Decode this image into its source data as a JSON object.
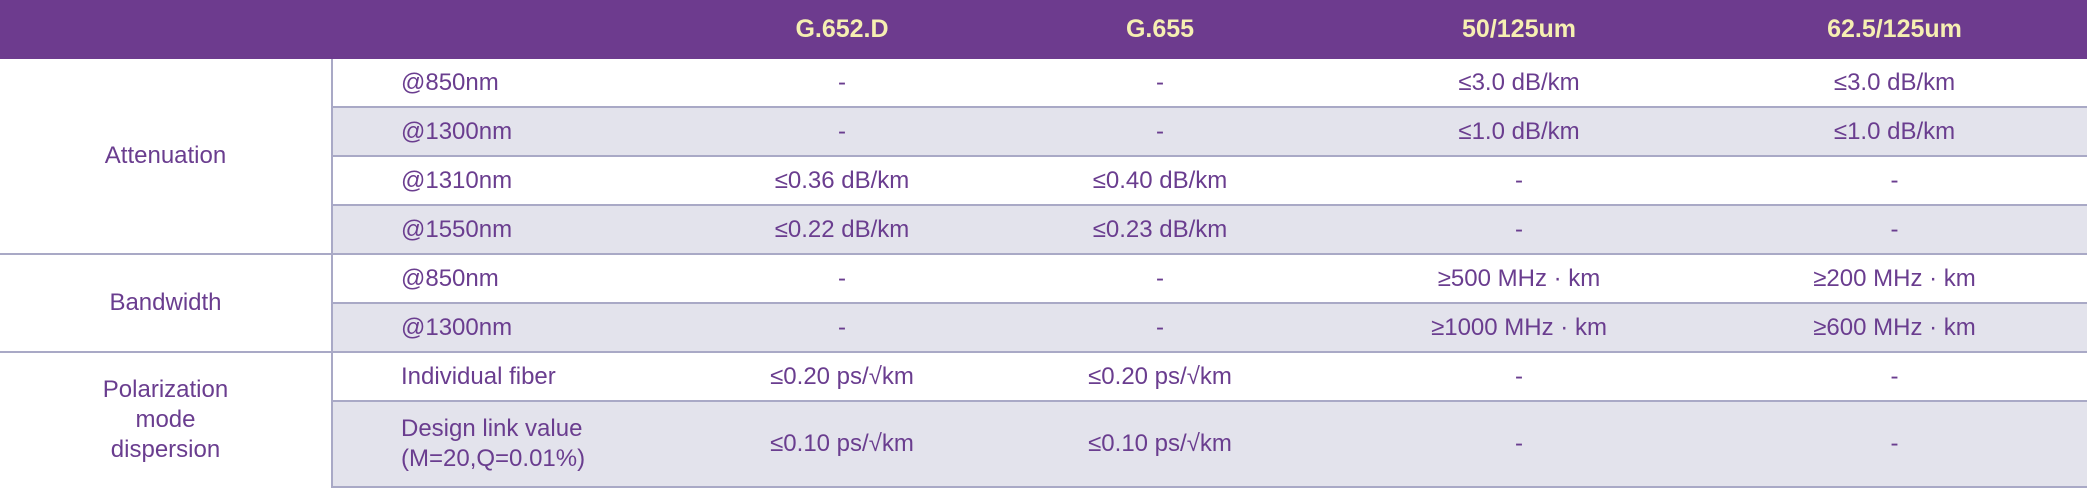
{
  "colors": {
    "header_bg": "#6d3b8e",
    "header_text": "#f6efb2",
    "text": "#6a3d8f",
    "stripe": "#e3e3ec",
    "rule": "#a9a9c6"
  },
  "header": [
    "",
    "",
    "G.652.D",
    "G.655",
    "50/125um",
    "62.5/125um"
  ],
  "groups": [
    {
      "label": "Attenuation",
      "rows": [
        {
          "sub": "@850nm",
          "values": [
            "-",
            "-",
            "≤3.0 dB/km",
            "≤3.0 dB/km"
          ]
        },
        {
          "sub": "@1300nm",
          "values": [
            "-",
            "-",
            "≤1.0 dB/km",
            "≤1.0 dB/km"
          ]
        },
        {
          "sub": "@1310nm",
          "values": [
            "≤0.36 dB/km",
            "≤0.40 dB/km",
            "-",
            "-"
          ]
        },
        {
          "sub": "@1550nm",
          "values": [
            "≤0.22 dB/km",
            "≤0.23 dB/km",
            "-",
            "-"
          ]
        }
      ]
    },
    {
      "label": "Bandwidth",
      "rows": [
        {
          "sub": "@850nm",
          "values": [
            "-",
            "-",
            "≥500 MHz · km",
            "≥200 MHz · km"
          ]
        },
        {
          "sub": "@1300nm",
          "values": [
            "-",
            "-",
            "≥1000 MHz · km",
            "≥600 MHz · km"
          ]
        }
      ]
    },
    {
      "label": "Polarization mode dispersion",
      "rows": [
        {
          "sub": "Individual fiber",
          "values": [
            "≤0.20 ps/√km",
            "≤0.20 ps/√km",
            "-",
            "-"
          ]
        },
        {
          "sub": "Design link value (M=20,Q=0.01%)",
          "values": [
            "≤0.10 ps/√km",
            "≤0.10 ps/√km",
            "-",
            "-"
          ]
        }
      ]
    }
  ]
}
